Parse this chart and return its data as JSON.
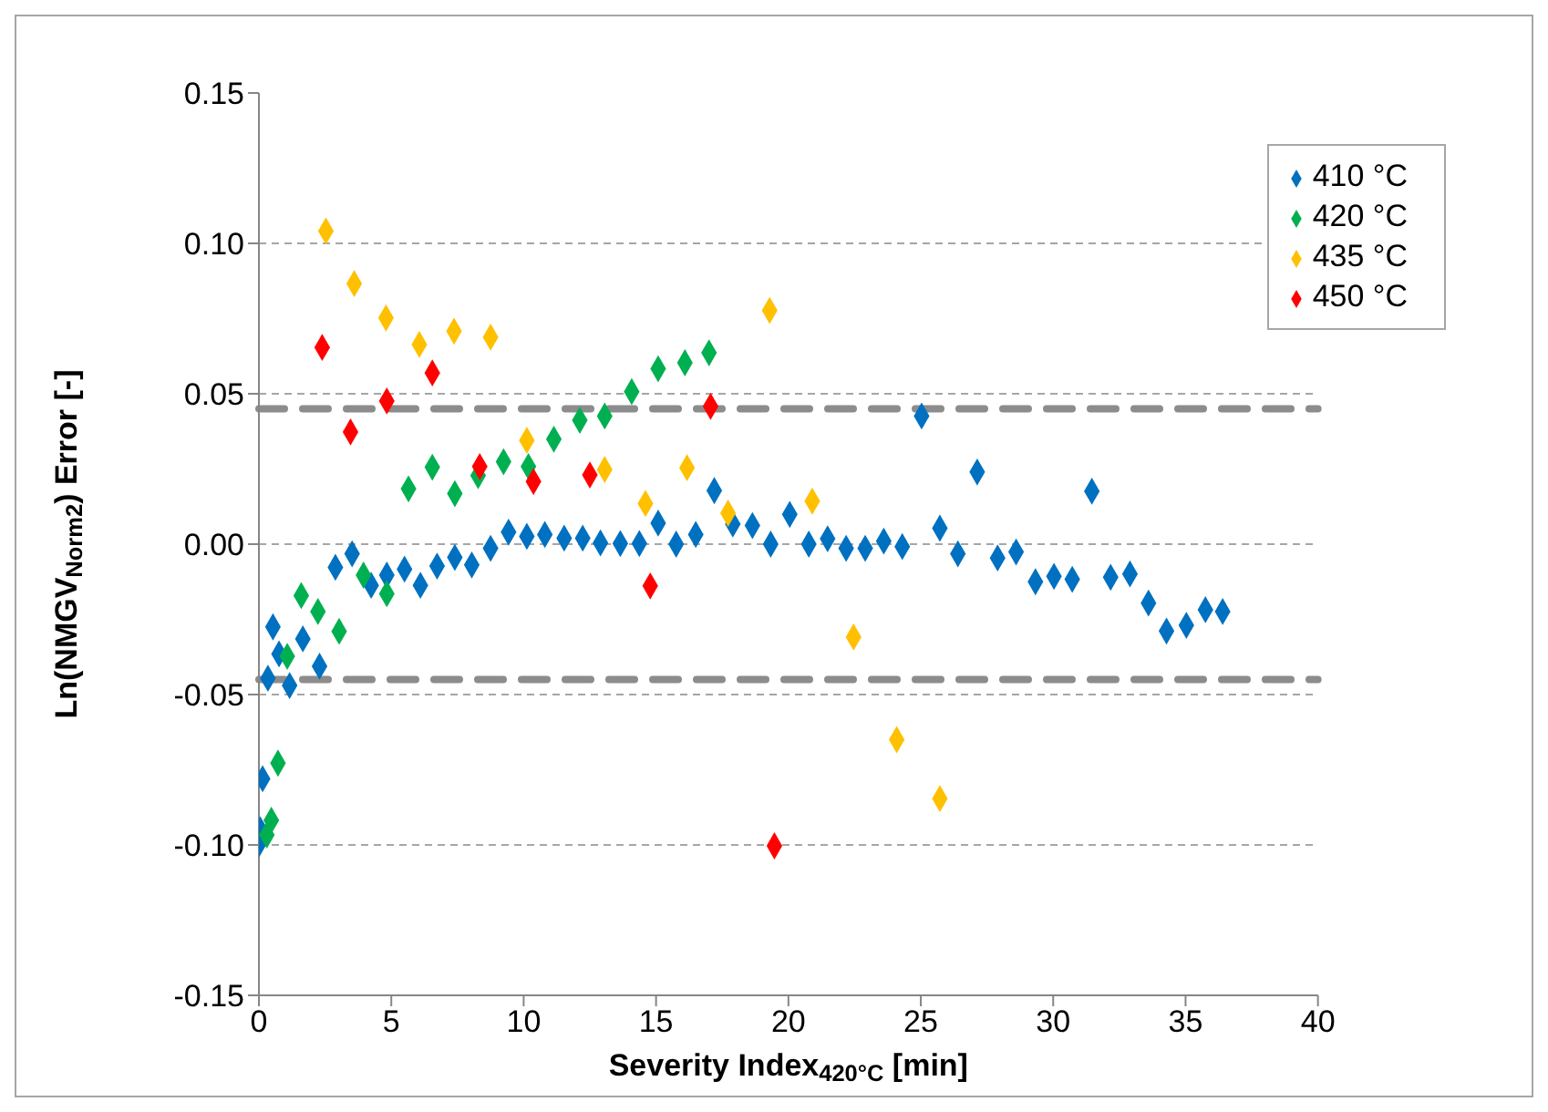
{
  "chart_data": {
    "type": "scatter",
    "xlabel": "Severity Index$_{420°C}$ [min]",
    "ylabel": "Ln(NMGV$_{Norm2}$)  Error [-]",
    "xlim": [
      0,
      40
    ],
    "xticks": [
      0,
      5,
      10,
      15,
      20,
      25,
      30,
      35,
      40
    ],
    "ylim": [
      -0.15,
      0.15
    ],
    "yticks": [
      {
        "value": -0.15,
        "label": "-0.15"
      },
      {
        "value": -0.1,
        "label": "-0.10"
      },
      {
        "value": -0.05,
        "label": "-0.05"
      },
      {
        "value": 0,
        "label": "0.00"
      },
      {
        "value": 0.05,
        "label": "0.05"
      },
      {
        "value": 0.1,
        "label": "0.10"
      },
      {
        "value": 0.15,
        "label": "0.15"
      }
    ],
    "grid": "y",
    "legend": "top right",
    "marker": "diamond",
    "ref_lines": [
      {
        "axis": "y",
        "value": 0.045,
        "color": "#8c8c8c",
        "line_style": "dashed"
      },
      {
        "axis": "y",
        "value": -0.045,
        "color": "#8c8c8c",
        "line_style": "dashed"
      }
    ],
    "series": [
      {
        "name": "410 °C",
        "color": "#0070c0",
        "x": [
          0.0,
          0.05,
          0.14,
          0.34,
          0.53,
          0.76,
          1.16,
          1.66,
          2.29,
          2.89,
          3.52,
          4.24,
          4.83,
          5.5,
          6.1,
          6.73,
          7.4,
          8.04,
          8.75,
          9.43,
          10.12,
          10.8,
          11.53,
          12.23,
          12.9,
          13.65,
          14.37,
          15.08,
          15.76,
          16.5,
          17.2,
          17.9,
          18.64,
          19.33,
          20.05,
          20.77,
          21.48,
          22.18,
          22.9,
          23.6,
          24.3,
          25.03,
          25.72,
          26.4,
          27.13,
          27.9,
          28.6,
          29.33,
          30.03,
          30.72,
          31.46,
          32.17,
          32.9,
          33.6,
          34.28,
          35.03,
          35.75,
          36.4
        ],
        "values": [
          -0.0997,
          -0.095,
          -0.078,
          -0.0446,
          -0.0275,
          -0.0365,
          -0.047,
          -0.0315,
          -0.0406,
          -0.0077,
          -0.0032,
          -0.0137,
          -0.0103,
          -0.0083,
          -0.0137,
          -0.0073,
          -0.0044,
          -0.0069,
          -0.0014,
          0.004,
          0.0026,
          0.0032,
          0.002,
          0.002,
          0.0004,
          0.0002,
          0.0002,
          0.007,
          0.0,
          0.0032,
          0.0178,
          0.0067,
          0.0062,
          0.0,
          0.0099,
          0.0,
          0.0018,
          -0.0014,
          -0.0014,
          0.001,
          -0.0008,
          0.0426,
          0.0053,
          -0.0032,
          0.024,
          -0.0046,
          -0.0026,
          -0.0125,
          -0.0107,
          -0.0117,
          0.0176,
          -0.011,
          -0.0099,
          -0.0196,
          -0.0289,
          -0.027,
          -0.0218,
          -0.0224
        ]
      },
      {
        "name": "420 °C",
        "color": "#00b050",
        "x": [
          0.3,
          0.47,
          0.72,
          1.07,
          1.6,
          2.23,
          3.03,
          3.95,
          4.83,
          5.65,
          6.55,
          7.4,
          8.28,
          9.24,
          10.18,
          11.14,
          12.12,
          13.06,
          14.08,
          15.08,
          16.09,
          17.0
        ],
        "values": [
          -0.0967,
          -0.0918,
          -0.0728,
          -0.0373,
          -0.0171,
          -0.0224,
          -0.029,
          -0.0103,
          -0.0165,
          0.0184,
          0.0256,
          0.0168,
          0.0228,
          0.0274,
          0.0258,
          0.0349,
          0.0412,
          0.0426,
          0.0507,
          0.0583,
          0.0603,
          0.0636
        ]
      },
      {
        "name": "435 °C",
        "color": "#ffc000",
        "x": [
          2.53,
          3.6,
          4.8,
          6.06,
          7.37,
          8.75,
          10.12,
          13.06,
          14.6,
          16.17,
          17.72,
          19.29,
          20.9,
          22.46,
          24.09,
          25.72
        ],
        "values": [
          0.1041,
          0.0866,
          0.0752,
          0.0664,
          0.0708,
          0.0688,
          0.0345,
          0.0248,
          0.0135,
          0.0254,
          0.0103,
          0.0777,
          0.0143,
          -0.0309,
          -0.065,
          -0.0846
        ]
      },
      {
        "name": "450 °C",
        "color": "#ff0000",
        "x": [
          2.39,
          3.46,
          4.83,
          6.55,
          8.34,
          10.37,
          12.5,
          14.78,
          17.06,
          19.47
        ],
        "values": [
          0.0654,
          0.0373,
          0.0476,
          0.0569,
          0.0258,
          0.0208,
          0.023,
          -0.0139,
          0.0458,
          -0.1003
        ]
      }
    ]
  }
}
